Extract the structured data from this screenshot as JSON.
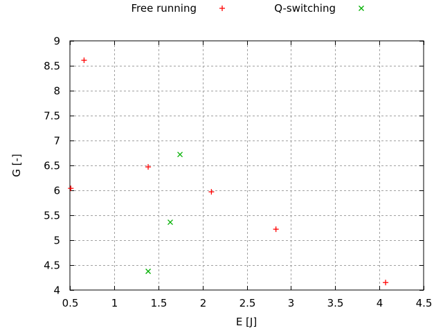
{
  "chart_data": {
    "type": "scatter",
    "title": "",
    "xlabel": "E [J]",
    "ylabel": "G [-]",
    "xlim": [
      0.5,
      4.5
    ],
    "ylim": [
      4,
      9
    ],
    "xticks": [
      0.5,
      1,
      1.5,
      2,
      2.5,
      3,
      3.5,
      4,
      4.5
    ],
    "xtick_labels": [
      "0.5",
      "1",
      "1.5",
      "2",
      "2.5",
      "3",
      "3.5",
      "4",
      "4.5"
    ],
    "yticks": [
      4,
      4.5,
      5,
      5.5,
      6,
      6.5,
      7,
      7.5,
      8,
      8.5,
      9
    ],
    "ytick_labels": [
      "4",
      "4.5",
      "5",
      "5.5",
      "6",
      "6.5",
      "7",
      "7.5",
      "8",
      "8.5",
      "9"
    ],
    "grid": true,
    "legend_position": "top-center-outside",
    "series": [
      {
        "name": "Free running",
        "marker": "plus",
        "color": "#ff0000",
        "points": [
          [
            0.66,
            8.61
          ],
          [
            1.385,
            6.47
          ],
          [
            0.51,
            6.04
          ],
          [
            2.1,
            5.97
          ],
          [
            2.83,
            5.22
          ],
          [
            4.07,
            4.15
          ]
        ]
      },
      {
        "name": "Q-switching",
        "marker": "cross",
        "color": "#00b000",
        "points": [
          [
            1.745,
            6.72
          ],
          [
            1.635,
            5.36
          ],
          [
            1.385,
            4.375
          ]
        ]
      }
    ]
  }
}
